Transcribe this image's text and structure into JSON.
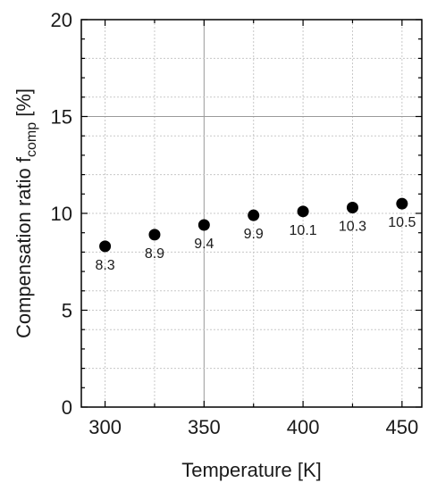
{
  "chart_data": {
    "type": "scatter",
    "x": [
      300,
      325,
      350,
      375,
      400,
      425,
      450
    ],
    "y": [
      8.3,
      8.9,
      9.4,
      9.9,
      10.1,
      10.3,
      10.5
    ],
    "labels": [
      "8.3",
      "8.9",
      "9.4",
      "9.9",
      "10.1",
      "10.3",
      "10.5"
    ],
    "xlabel": "Temperature [K]",
    "ylabel": {
      "prefix": "Compensation ratio f",
      "subscript": "comp",
      "suffix": " [%]"
    },
    "xlim": [
      288,
      460
    ],
    "ylim": [
      0,
      20
    ],
    "xticks": [
      300,
      350,
      400,
      450
    ],
    "xtick_labels": [
      "300",
      "350",
      "400",
      "450"
    ],
    "yticks": [
      0,
      5,
      10,
      15,
      20
    ],
    "ytick_labels": [
      "0",
      "5",
      "10",
      "15",
      "20"
    ],
    "grid": "on",
    "marker_color": "#000000"
  }
}
